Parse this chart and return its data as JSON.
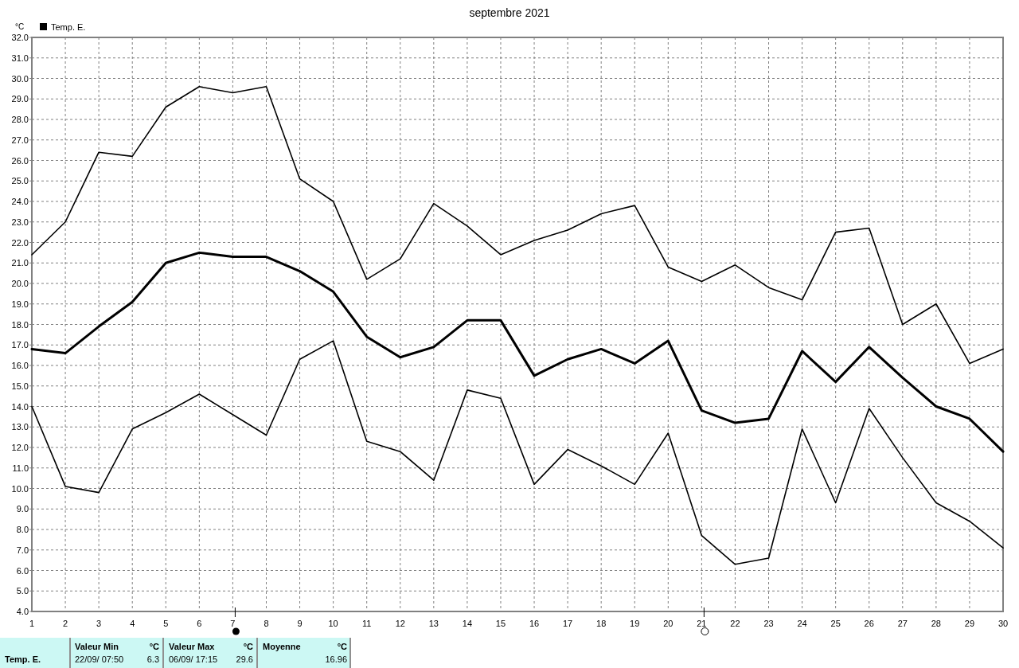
{
  "chart_data": {
    "type": "line",
    "title": "septembre 2021",
    "ylabel": "°C",
    "x": [
      1,
      2,
      3,
      4,
      5,
      6,
      7,
      8,
      9,
      10,
      11,
      12,
      13,
      14,
      15,
      16,
      17,
      18,
      19,
      20,
      21,
      22,
      23,
      24,
      25,
      26,
      27,
      28,
      29,
      30
    ],
    "xlim": [
      1,
      30
    ],
    "xticks": [
      1,
      2,
      3,
      4,
      5,
      6,
      7,
      8,
      9,
      10,
      11,
      12,
      13,
      14,
      15,
      16,
      17,
      18,
      19,
      20,
      21,
      22,
      23,
      24,
      25,
      26,
      27,
      28,
      29,
      30
    ],
    "ylim": [
      4,
      32
    ],
    "yticks": [
      {
        "value": 4,
        "label": "4.0"
      },
      {
        "value": 5,
        "label": "5.0"
      },
      {
        "value": 6,
        "label": "6.0"
      },
      {
        "value": 7,
        "label": "7.0"
      },
      {
        "value": 8,
        "label": "8.0"
      },
      {
        "value": 9,
        "label": "9.0"
      },
      {
        "value": 10,
        "label": "10.0"
      },
      {
        "value": 11,
        "label": "11.0"
      },
      {
        "value": 12,
        "label": "12.0"
      },
      {
        "value": 13,
        "label": "13.0"
      },
      {
        "value": 14,
        "label": "14.0"
      },
      {
        "value": 15,
        "label": "15.0"
      },
      {
        "value": 16,
        "label": "16.0"
      },
      {
        "value": 17,
        "label": "17.0"
      },
      {
        "value": 18,
        "label": "18.0"
      },
      {
        "value": 19,
        "label": "19.0"
      },
      {
        "value": 20,
        "label": "20.0"
      },
      {
        "value": 21,
        "label": "21.0"
      },
      {
        "value": 22,
        "label": "22.0"
      },
      {
        "value": 23,
        "label": "23.0"
      },
      {
        "value": 24,
        "label": "24.0"
      },
      {
        "value": 25,
        "label": "25.0"
      },
      {
        "value": 26,
        "label": "26.0"
      },
      {
        "value": 27,
        "label": "27.0"
      },
      {
        "value": 28,
        "label": "28.0"
      },
      {
        "value": 29,
        "label": "29.0"
      },
      {
        "value": 30,
        "label": "30.0"
      },
      {
        "value": 31,
        "label": "31.0"
      },
      {
        "value": 32,
        "label": "32.0"
      }
    ],
    "series": [
      {
        "color": "#000000",
        "values": [
          21.4,
          23.0,
          26.4,
          26.2,
          28.6,
          29.6,
          29.3,
          29.6,
          25.1,
          24.0,
          20.2,
          21.2,
          23.9,
          22.8,
          21.4,
          22.1,
          22.6,
          23.4,
          23.8,
          20.8,
          20.1,
          20.9,
          19.8,
          19.2,
          22.5,
          22.7,
          18.0,
          19.0,
          16.1,
          16.8
        ]
      },
      {
        "name": "Temp. E.",
        "color": "#000000",
        "values": [
          16.8,
          16.6,
          17.9,
          19.1,
          21.0,
          21.5,
          21.3,
          21.3,
          20.6,
          19.6,
          17.4,
          16.4,
          16.9,
          18.2,
          18.2,
          15.5,
          16.3,
          16.8,
          16.1,
          17.2,
          13.8,
          13.2,
          13.4,
          16.7,
          15.2,
          16.9,
          15.4,
          14.0,
          13.4,
          11.8
        ]
      },
      {
        "color": "#000000",
        "values": [
          14.0,
          10.1,
          9.8,
          12.9,
          13.7,
          14.6,
          13.6,
          12.6,
          16.3,
          17.2,
          12.3,
          11.8,
          10.4,
          14.8,
          14.4,
          10.2,
          11.9,
          11.1,
          10.2,
          12.7,
          7.7,
          6.3,
          6.6,
          12.9,
          9.3,
          13.9,
          11.5,
          9.3,
          8.4,
          7.1
        ]
      }
    ],
    "grid": true,
    "legend": "top left",
    "line_style": "solid",
    "marker": "none",
    "annotations": [
      "Temp. E.",
      "Valeur Min",
      "°C",
      "22/09/ 07:50",
      "6.3",
      "Valeur Max",
      "°C",
      "06/09/ 17:15",
      "29.6",
      "Moyenne",
      "°C",
      "16.96"
    ]
  }
}
